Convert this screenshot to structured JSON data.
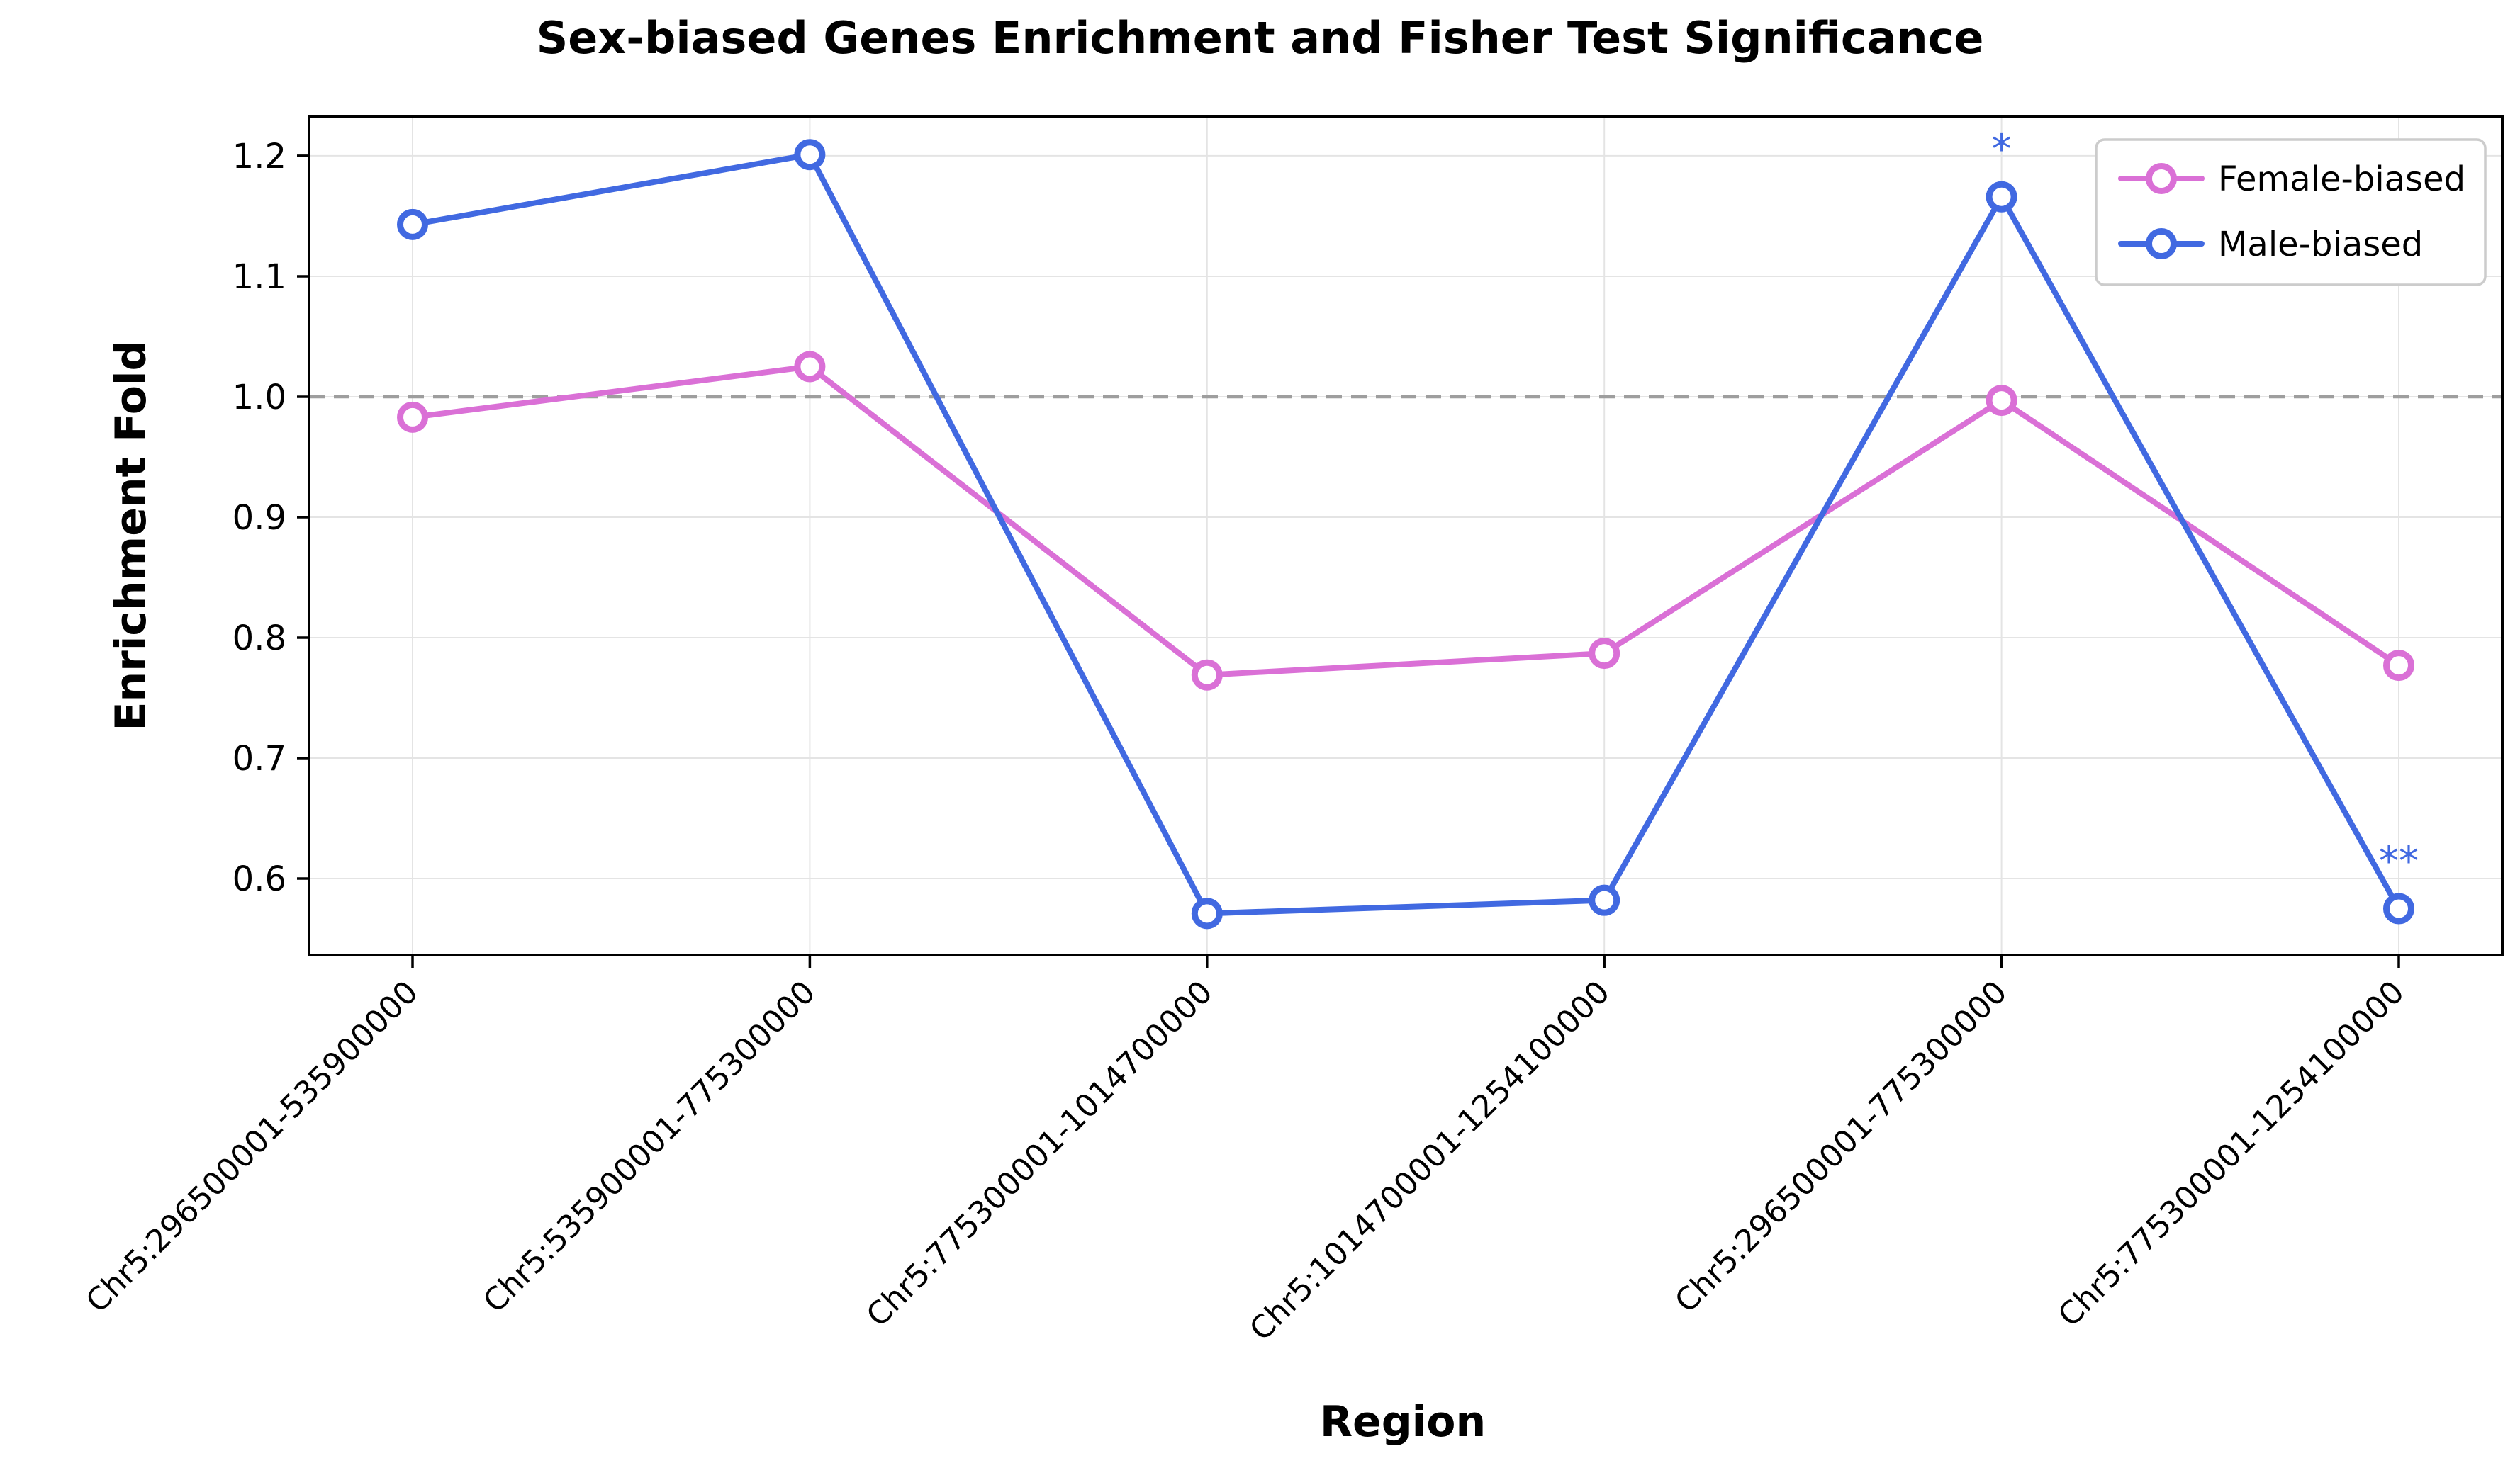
{
  "title": "Sex-biased Genes Enrichment and Fisher Test Significance",
  "chart_data": {
    "type": "line",
    "title": "Sex-biased Genes Enrichment and Fisher Test Significance",
    "xlabel": "Region",
    "ylabel": "Enrichment Fold",
    "categories": [
      "Chr5:296500001-535900000",
      "Chr5:535900001-775300000",
      "Chr5:775300001-1014700000",
      "Chr5:1014700001-1254100000",
      "Chr5:296500001-775300000",
      "Chr5:775300001-1254100000"
    ],
    "series": [
      {
        "name": "Female-biased",
        "color": "#DA70D6",
        "values": [
          0.983,
          1.025,
          0.769,
          0.787,
          0.997,
          0.777
        ]
      },
      {
        "name": "Male-biased",
        "color": "#4169E1",
        "values": [
          1.143,
          1.201,
          0.571,
          0.582,
          1.166,
          0.575
        ]
      }
    ],
    "annotations": [
      {
        "label": "*",
        "series_index": 1,
        "category_index": 4
      },
      {
        "label": "**",
        "series_index": 1,
        "category_index": 5
      }
    ],
    "yticks": [
      0.6,
      0.7,
      0.8,
      0.9,
      1.0,
      1.1,
      1.2
    ],
    "ylim": [
      0.5365,
      1.2329
    ],
    "baseline": {
      "value": 1.0,
      "style": "dashed",
      "color": "#9E9E9E"
    },
    "grid": true,
    "legend": {
      "position": "upper right",
      "entries": [
        "Female-biased",
        "Male-biased"
      ]
    }
  },
  "colors": {
    "grid": "#E4E4E4",
    "spine": "#000000",
    "tick_text": "#000000",
    "baseline": "#9E9E9E",
    "legend_border": "#CCCCCC",
    "legend_bg": "#FFFFFF"
  }
}
